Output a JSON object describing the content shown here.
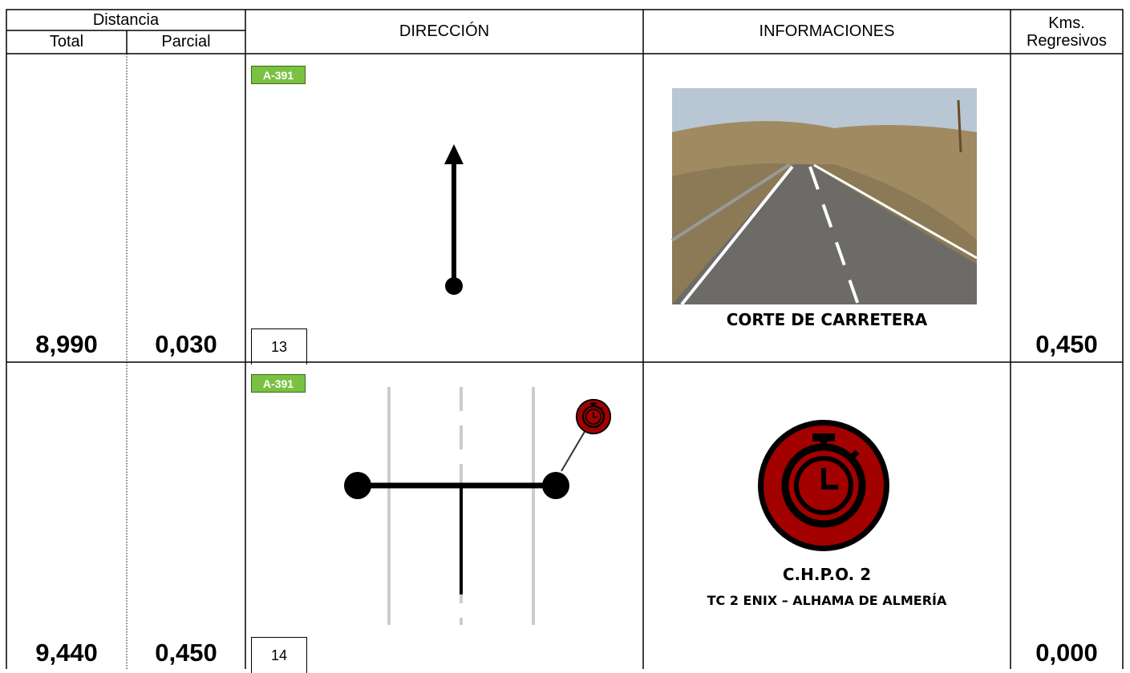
{
  "header": {
    "distance": "Distancia",
    "total": "Total",
    "partial": "Parcial",
    "direction": "DIRECCIÓN",
    "info": "INFORMACIONES",
    "kms": "Kms.\nRegresivos"
  },
  "rows": [
    {
      "total": "8,990",
      "partial": "0,030",
      "road": "A-391",
      "number": "13",
      "info": [
        "CORTE DE CARRETERA"
      ],
      "kms": "0,450"
    },
    {
      "total": "9,440",
      "partial": "0,450",
      "road": "A-391",
      "number": "14",
      "info": [
        "C.H.P.O. 2",
        "TC 2 ENIX – ALHAMA DE ALMERÍA"
      ],
      "kms": "0,000"
    }
  ]
}
